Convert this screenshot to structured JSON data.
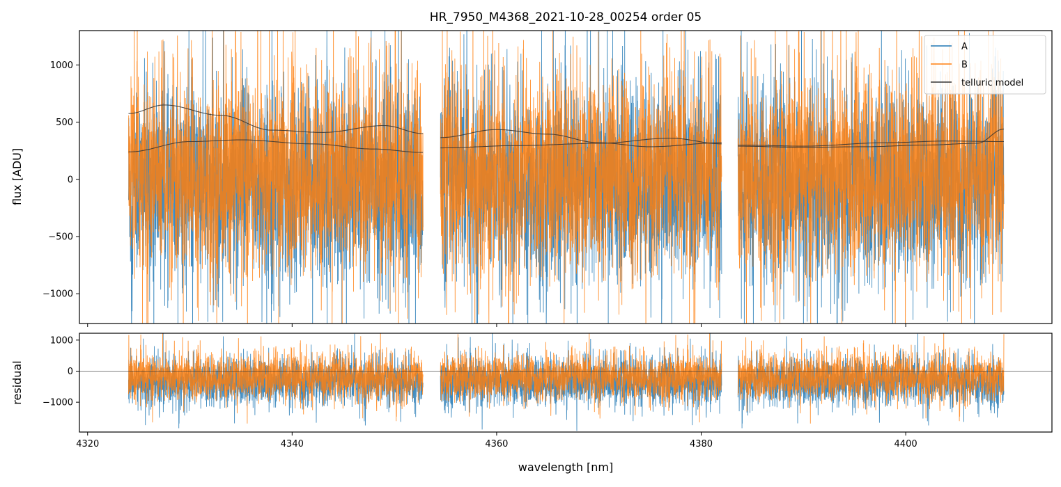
{
  "chart_data": [
    {
      "panel": "flux",
      "type": "line",
      "title": "HR_7950_M4368_2021-10-28_00254  order 05",
      "xlabel": "",
      "ylabel": "flux [ADU]",
      "xlim": [
        4319.2,
        4414.3
      ],
      "ylim": [
        -1260,
        1300
      ],
      "xticks": [
        4320,
        4340,
        4360,
        4380,
        4400
      ],
      "xtick_labels": [
        "",
        "",
        "",
        "",
        ""
      ],
      "yticks": [
        -1000,
        -500,
        0,
        500,
        1000
      ],
      "ytick_labels": [
        "−1000",
        "−500",
        "0",
        "500",
        "1000"
      ],
      "segments": [
        [
          4324.0,
          4352.8
        ],
        [
          4354.5,
          4382.0
        ],
        [
          4383.6,
          4409.6
        ]
      ],
      "legend": {
        "placement": "top-right",
        "entries": [
          "A",
          "B",
          "telluric model"
        ]
      },
      "series": [
        {
          "name": "A",
          "color": "#1f77b4",
          "kind": "noise",
          "center": -50,
          "spread": 420
        },
        {
          "name": "B",
          "color": "#ff7f0e",
          "kind": "noise",
          "center": 40,
          "spread": 430
        },
        {
          "name": "telluric model",
          "color": "#333333",
          "kind": "curves",
          "curves": [
            {
              "x": [
                4324.0,
                4327.5,
                4333.0,
                4338.0,
                4343.0,
                4349.0,
                4352.8
              ],
              "y": [
                575,
                650,
                560,
                430,
                410,
                470,
                400
              ]
            },
            {
              "x": [
                4324.0,
                4330.0,
                4335.0,
                4342.0,
                4348.0,
                4352.8
              ],
              "y": [
                240,
                330,
                345,
                310,
                265,
                235
              ]
            },
            {
              "x": [
                4354.5,
                4360.0,
                4365.0,
                4370.0,
                4375.0,
                4382.0
              ],
              "y": [
                365,
                435,
                395,
                320,
                285,
                320
              ]
            },
            {
              "x": [
                4354.5,
                4362.0,
                4370.0,
                4377.0,
                4382.0
              ],
              "y": [
                275,
                295,
                315,
                360,
                310
              ]
            },
            {
              "x": [
                4383.6,
                4390.0,
                4396.0,
                4402.0,
                4407.0,
                4409.6
              ],
              "y": [
                290,
                280,
                285,
                300,
                315,
                440
              ]
            },
            {
              "x": [
                4383.6,
                4390.0,
                4398.0,
                4404.0,
                4409.6
              ],
              "y": [
                300,
                290,
                320,
                335,
                330
              ]
            }
          ]
        }
      ]
    },
    {
      "panel": "residual",
      "type": "line",
      "title": "",
      "xlabel": "wavelength [nm]",
      "ylabel": "residual",
      "xlim": [
        4319.2,
        4414.3
      ],
      "ylim": [
        -1960,
        1220
      ],
      "xticks": [
        4320,
        4340,
        4360,
        4380,
        4400
      ],
      "xtick_labels": [
        "4320",
        "4340",
        "4360",
        "4380",
        "4400"
      ],
      "yticks": [
        -1000,
        0,
        1000
      ],
      "ytick_labels": [
        "−1000",
        "0",
        "1000"
      ],
      "zero_line": 0,
      "segments": [
        [
          4324.0,
          4352.8
        ],
        [
          4354.5,
          4382.0
        ],
        [
          4383.6,
          4409.6
        ]
      ],
      "series": [
        {
          "name": "A",
          "color": "#1f77b4",
          "kind": "noise",
          "center": -350,
          "spread": 380
        },
        {
          "name": "B",
          "color": "#ff7f0e",
          "kind": "noise",
          "center": -200,
          "spread": 360
        }
      ]
    }
  ]
}
